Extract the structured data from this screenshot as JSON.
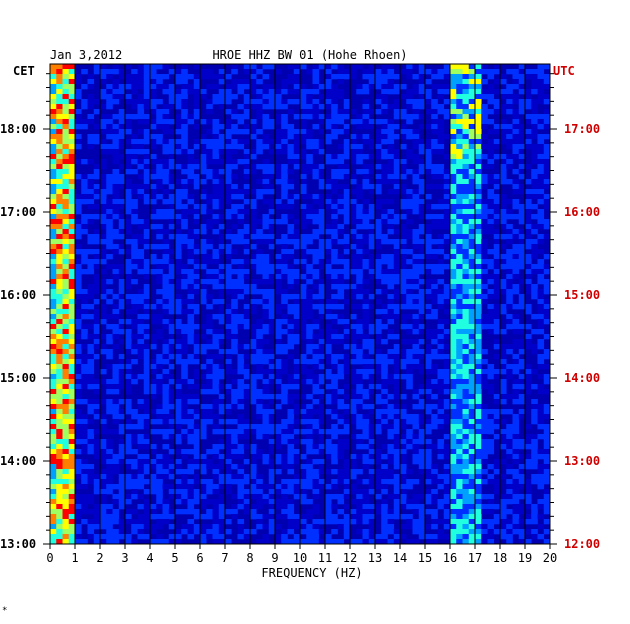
{
  "chart_data": {
    "type": "heatmap",
    "date_label": "Jan 3,2012",
    "title": "HROE HHZ BW 01 (Hohe Rhoen)",
    "xlabel": "FREQUENCY (HZ)",
    "left_tz": "CET",
    "right_tz": "UTC",
    "xlim": [
      0,
      20
    ],
    "x_ticks": [
      "0",
      "1",
      "2",
      "3",
      "4",
      "5",
      "6",
      "7",
      "8",
      "9",
      "10",
      "11",
      "12",
      "13",
      "14",
      "15",
      "16",
      "17",
      "18",
      "19",
      "20"
    ],
    "cet_ticks": [
      "18:00",
      "17:00",
      "16:00",
      "15:00",
      "14:00",
      "13:00"
    ],
    "utc_ticks": [
      "17:00",
      "16:00",
      "15:00",
      "14:00",
      "13:00",
      "12:00"
    ],
    "time_range_cet": [
      "13:00",
      "18:47"
    ],
    "colors": {
      "background": "#0000b0",
      "grid": "#000000",
      "utc_text": "#d00000",
      "colormap": [
        "#00008a",
        "#0000c8",
        "#0030ff",
        "#00a0ff",
        "#20ffe0",
        "#a0ff60",
        "#ffff00",
        "#ff8000",
        "#ff0000"
      ]
    },
    "energy_bands": [
      {
        "freq_range": [
          0.1,
          1.0
        ],
        "level": "high"
      },
      {
        "freq_range": [
          15.9,
          17.3
        ],
        "level": "medium"
      }
    ]
  },
  "footer": {
    "mark": "*"
  }
}
